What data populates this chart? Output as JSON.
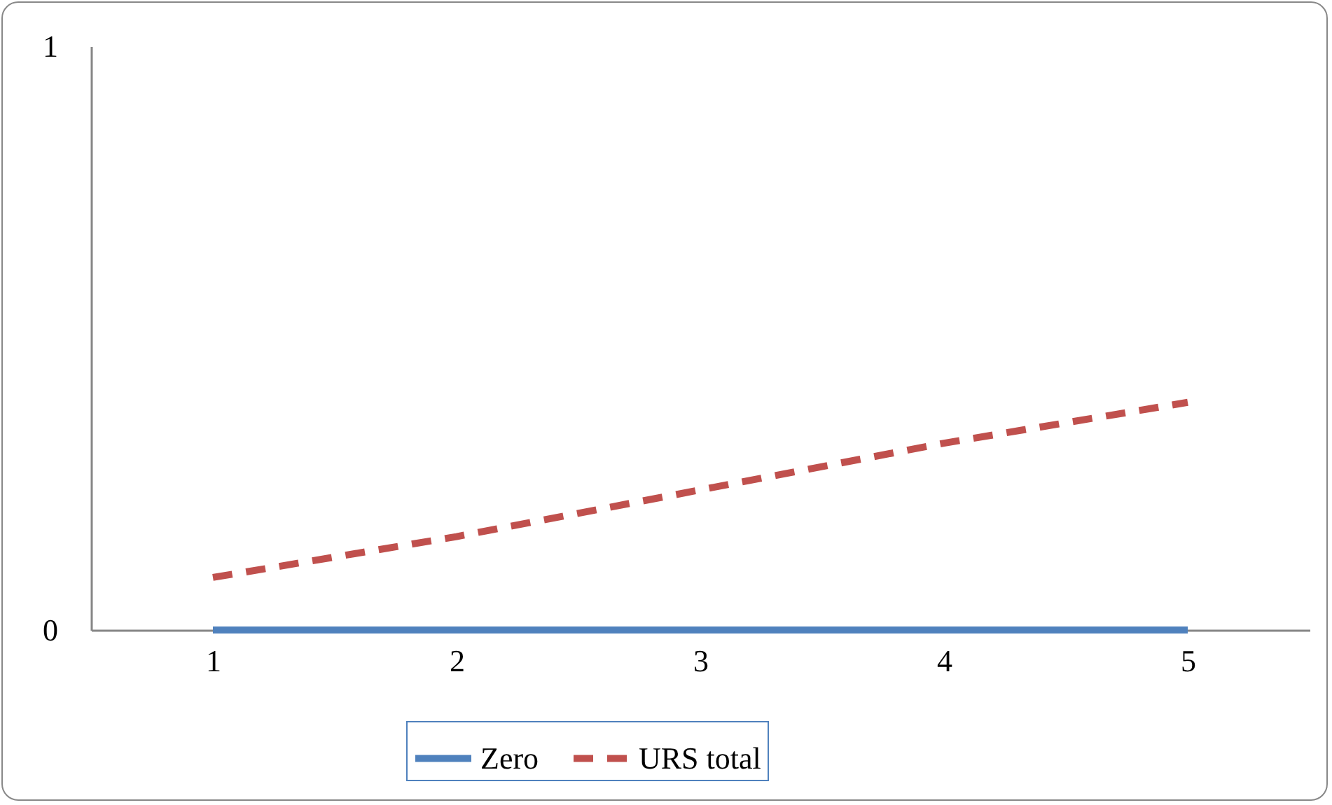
{
  "chart_data": {
    "type": "line",
    "categories": [
      "1",
      "2",
      "3",
      "4",
      "5"
    ],
    "series": [
      {
        "name": "Zero",
        "color": "#4f81bd",
        "line_style": "solid",
        "values": [
          0,
          0,
          0,
          0,
          0
        ]
      },
      {
        "name": "URS total",
        "color": "#c0504d",
        "line_style": "dashed",
        "values": [
          0.09,
          0.16,
          0.24,
          0.32,
          0.39
        ]
      }
    ],
    "ylim": [
      0,
      1
    ],
    "yticks": [
      0,
      1
    ],
    "grid": false,
    "legend": "bottom"
  }
}
